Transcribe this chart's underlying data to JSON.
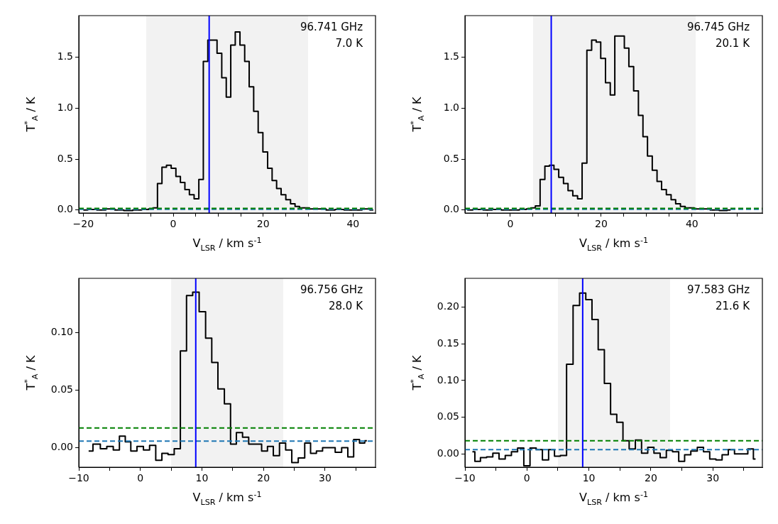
{
  "chart_data": [
    {
      "type": "step",
      "xlabel": "V$_{LSR}$ / km s$^{-1}$",
      "ylabel": "T$^{*}$$_{A}$ / K",
      "annotations": [
        "96.741 GHz",
        "7.0 K"
      ],
      "x": [
        -20,
        -18,
        -16,
        -14,
        -12,
        -10,
        -8,
        -6,
        -5,
        -4,
        -3.0,
        -2.0,
        -1.0,
        0.1,
        1.1,
        2.1,
        3.1,
        4.1,
        5.2,
        6.2,
        7.2,
        8.2,
        9.2,
        10.3,
        11.3,
        12.3,
        13.3,
        14.3,
        15.4,
        16.4,
        17.4,
        18.4,
        19.4,
        20.5,
        21.5,
        22.5,
        23.5,
        24.5,
        25.6,
        26.6,
        27.6,
        28.6,
        29.6,
        31,
        33,
        35,
        37,
        39,
        41,
        43,
        44.5
      ],
      "series": [
        {
          "color": "#000000",
          "values": [
            0.0,
            0.005,
            0.0,
            0.01,
            0.0,
            -0.005,
            0.0,
            0.005,
            0.01,
            0.02,
            0.26,
            0.42,
            0.44,
            0.41,
            0.33,
            0.27,
            0.2,
            0.15,
            0.11,
            0.3,
            1.46,
            1.67,
            1.67,
            1.54,
            1.3,
            1.11,
            1.62,
            1.75,
            1.62,
            1.46,
            1.21,
            0.97,
            0.76,
            0.57,
            0.41,
            0.29,
            0.21,
            0.15,
            0.1,
            0.06,
            0.035,
            0.02,
            0.02,
            0.01,
            0.01,
            0.0,
            0.005,
            0.0,
            0.0,
            0.01,
            0.0
          ]
        }
      ],
      "xlim": [
        -21,
        45
      ],
      "ylim": [
        -0.03,
        1.91
      ],
      "xticks": [
        {
          "value": -20,
          "label": "−20"
        },
        {
          "value": -15,
          "label": null
        },
        {
          "value": -10,
          "label": null
        },
        {
          "value": -5,
          "label": null
        },
        0,
        {
          "value": 5,
          "label": null
        },
        {
          "value": 10,
          "label": null
        },
        {
          "value": 15,
          "label": null
        },
        20,
        {
          "value": 25,
          "label": null
        },
        {
          "value": 30,
          "label": null
        },
        {
          "value": 35,
          "label": null
        },
        40
      ],
      "yticks": [
        {
          "value": 0,
          "label": "0.0"
        },
        {
          "value": 0.5,
          "label": "0.5"
        },
        {
          "value": 1,
          "label": "1.0"
        },
        {
          "value": 1.5,
          "label": "1.5"
        }
      ],
      "ref_lines": [
        {
          "axis": "y",
          "value": 0.007,
          "color": "#1f77b4",
          "line_style": "dashed"
        },
        {
          "axis": "y",
          "value": 0.016,
          "color": "#008000",
          "line_style": "dashed"
        },
        {
          "axis": "x",
          "value": 8,
          "color": "#0000ff",
          "line_style": "solid"
        }
      ],
      "bands": [
        {
          "axis": "x",
          "from": -6,
          "to": 30,
          "color": "#f2f2f2"
        }
      ]
    },
    {
      "type": "step",
      "xlabel": "V$_{LSR}$ / km s$^{-1}$",
      "ylabel": "T$^{*}$$_{A}$ / K",
      "annotations": [
        "96.745 GHz",
        "20.1 K"
      ],
      "x": [
        -9.5,
        -7,
        -5,
        -3,
        -1,
        1,
        3,
        4,
        5.0,
        6.0,
        7.1,
        8.1,
        9.1,
        10.1,
        11.2,
        12.2,
        13.2,
        14.3,
        15.3,
        16.3,
        17.4,
        18.4,
        19.4,
        20.4,
        21.5,
        22.5,
        23.5,
        24.6,
        25.6,
        26.6,
        27.7,
        28.7,
        29.7,
        30.7,
        31.8,
        32.8,
        33.8,
        34.9,
        35.9,
        36.9,
        38.0,
        39.0,
        40.0,
        41.0,
        43.0,
        45.0,
        47.0,
        48.5
      ],
      "series": [
        {
          "color": "#000000",
          "values": [
            0.0,
            0.005,
            0.0,
            0.005,
            0.0,
            0.0,
            0.005,
            0.01,
            0.02,
            0.04,
            0.3,
            0.43,
            0.44,
            0.4,
            0.32,
            0.26,
            0.19,
            0.14,
            0.11,
            0.46,
            1.57,
            1.67,
            1.65,
            1.49,
            1.25,
            1.13,
            1.71,
            1.71,
            1.59,
            1.41,
            1.17,
            0.93,
            0.72,
            0.53,
            0.39,
            0.28,
            0.2,
            0.15,
            0.1,
            0.06,
            0.035,
            0.02,
            0.02,
            0.01,
            0.01,
            0.0,
            -0.005,
            0.0
          ]
        }
      ],
      "xlim": [
        -10,
        55.5
      ],
      "ylim": [
        -0.03,
        1.91
      ],
      "xticks": [
        {
          "value": -5,
          "label": null
        },
        0,
        {
          "value": 5,
          "label": null
        },
        {
          "value": 10,
          "label": null
        },
        {
          "value": 15,
          "label": null
        },
        20,
        {
          "value": 25,
          "label": null
        },
        {
          "value": 30,
          "label": null
        },
        {
          "value": 35,
          "label": null
        },
        40,
        {
          "value": 45,
          "label": null
        },
        {
          "value": 50,
          "label": null
        }
      ],
      "yticks": [
        {
          "value": 0,
          "label": "0.0"
        },
        {
          "value": 0.5,
          "label": "0.5"
        },
        {
          "value": 1,
          "label": "1.0"
        },
        {
          "value": 1.5,
          "label": "1.5"
        }
      ],
      "ref_lines": [
        {
          "axis": "y",
          "value": 0.007,
          "color": "#1f77b4",
          "line_style": "dashed"
        },
        {
          "axis": "y",
          "value": 0.016,
          "color": "#008000",
          "line_style": "dashed"
        },
        {
          "axis": "x",
          "value": 9,
          "color": "#0000ff",
          "line_style": "solid"
        }
      ],
      "bands": [
        {
          "axis": "x",
          "from": 5,
          "to": 40.8,
          "color": "#f2f2f2"
        }
      ]
    },
    {
      "type": "step",
      "xlabel": "V$_{LSR}$ / km s$^{-1}$",
      "ylabel": "T$^{*}$$_{A}$ / K",
      "annotations": [
        "96.756 GHz",
        "28.0 K"
      ],
      "x": [
        -8.4,
        -7.0,
        -6.0,
        -4.9,
        -3.9,
        -2.9,
        -2.0,
        -1.1,
        0.0,
        1.0,
        2.0,
        3.0,
        4.0,
        5.0,
        6.0,
        7.0,
        8.0,
        9.0,
        10.1,
        11.1,
        12.1,
        13.1,
        14.2,
        15.1,
        16.1,
        17.1,
        18.1,
        19.2,
        20.2,
        21.1,
        22.1,
        23.1,
        24.1,
        25.1,
        26.2,
        27.2,
        28.1,
        29.1,
        30.1,
        31.1,
        32.2,
        33.2,
        34.2,
        35.1,
        36.1,
        36.8
      ],
      "series": [
        {
          "color": "#000000",
          "values": [
            -0.003,
            0.003,
            -0.001,
            0.001,
            -0.002,
            0.01,
            0.005,
            -0.003,
            0.001,
            -0.002,
            0.002,
            -0.011,
            -0.005,
            -0.006,
            -0.001,
            0.084,
            0.132,
            0.135,
            0.118,
            0.095,
            0.074,
            0.051,
            0.038,
            0.003,
            0.013,
            0.009,
            0.003,
            0.003,
            -0.003,
            0.001,
            -0.007,
            0.004,
            -0.002,
            -0.013,
            -0.009,
            0.004,
            -0.005,
            -0.003,
            0.0,
            0.0,
            -0.004,
            0.0,
            -0.008,
            0.007,
            0.004,
            0.006
          ]
        }
      ],
      "xlim": [
        -10,
        38.2
      ],
      "ylim": [
        -0.017,
        0.147
      ],
      "xticks": [
        {
          "value": -10,
          "label": "−10"
        },
        {
          "value": -5,
          "label": null
        },
        0,
        {
          "value": 5,
          "label": null
        },
        10,
        {
          "value": 15,
          "label": null
        },
        20,
        {
          "value": 25,
          "label": null
        },
        30,
        {
          "value": 35,
          "label": null
        }
      ],
      "yticks": [
        {
          "value": 0,
          "label": "0.00"
        },
        {
          "value": 0.05,
          "label": "0.05"
        },
        {
          "value": 0.1,
          "label": "0.10"
        }
      ],
      "ref_lines": [
        {
          "axis": "y",
          "value": 0.0056,
          "color": "#1f77b4",
          "line_style": "dashed"
        },
        {
          "axis": "y",
          "value": 0.017,
          "color": "#008000",
          "line_style": "dashed"
        },
        {
          "axis": "x",
          "value": 9,
          "color": "#0000ff",
          "line_style": "solid"
        }
      ],
      "bands": [
        {
          "axis": "x",
          "from": 5,
          "to": 23.2,
          "color": "#f2f2f2"
        }
      ]
    },
    {
      "type": "step",
      "xlabel": "V$_{LSR}$ / km s$^{-1}$",
      "ylabel": "T$^{*}$$_{A}$ / K",
      "annotations": [
        "97.583 GHz",
        "21.6 K"
      ],
      "x": [
        -8.8,
        -8.0,
        -7.0,
        -6.0,
        -5.0,
        -4.0,
        -3.0,
        -2.0,
        -1.0,
        0.0,
        1.0,
        2.0,
        3.0,
        4.0,
        4.9,
        5.9,
        6.9,
        8.0,
        9.0,
        10.0,
        11.0,
        12.0,
        13.0,
        14.0,
        15.0,
        16.0,
        17.0,
        18.0,
        19.0,
        20.0,
        21.0,
        22.0,
        23.0,
        24.0,
        25.0,
        25.9,
        27.0,
        28.0,
        29.0,
        30.0,
        31.0,
        32.0,
        33.0,
        34.0,
        35.1,
        36.2,
        36.9
      ],
      "series": [
        {
          "color": "#000000",
          "values": [
            0.003,
            -0.01,
            -0.005,
            -0.004,
            0.001,
            -0.007,
            -0.002,
            0.003,
            0.008,
            -0.016,
            0.008,
            0.006,
            -0.008,
            0.006,
            -0.003,
            -0.002,
            0.122,
            0.202,
            0.219,
            0.21,
            0.183,
            0.142,
            0.096,
            0.054,
            0.043,
            0.018,
            0.007,
            0.019,
            0.001,
            0.009,
            0.001,
            -0.005,
            0.005,
            0.003,
            -0.01,
            -0.001,
            0.004,
            0.009,
            0.003,
            -0.007,
            -0.008,
            -0.001,
            0.006,
            0.0,
            0.0,
            0.007,
            -0.007
          ]
        }
      ],
      "xlim": [
        -10,
        38
      ],
      "ylim": [
        -0.018,
        0.239
      ],
      "xticks": [
        {
          "value": -10,
          "label": "−10"
        },
        {
          "value": -5,
          "label": null
        },
        0,
        {
          "value": 5,
          "label": null
        },
        10,
        {
          "value": 15,
          "label": null
        },
        20,
        {
          "value": 25,
          "label": null
        },
        30,
        {
          "value": 35,
          "label": null
        }
      ],
      "yticks": [
        {
          "value": 0,
          "label": "0.00"
        },
        {
          "value": 0.05,
          "label": "0.05"
        },
        {
          "value": 0.1,
          "label": "0.10"
        },
        {
          "value": 0.15,
          "label": "0.15"
        },
        {
          "value": 0.2,
          "label": "0.20"
        }
      ],
      "ref_lines": [
        {
          "axis": "y",
          "value": 0.006,
          "color": "#1f77b4",
          "line_style": "dashed"
        },
        {
          "axis": "y",
          "value": 0.018,
          "color": "#008000",
          "line_style": "dashed"
        },
        {
          "axis": "x",
          "value": 9,
          "color": "#0000ff",
          "line_style": "solid"
        }
      ],
      "bands": [
        {
          "axis": "x",
          "from": 5,
          "to": 23.1,
          "color": "#f2f2f2"
        }
      ]
    }
  ]
}
